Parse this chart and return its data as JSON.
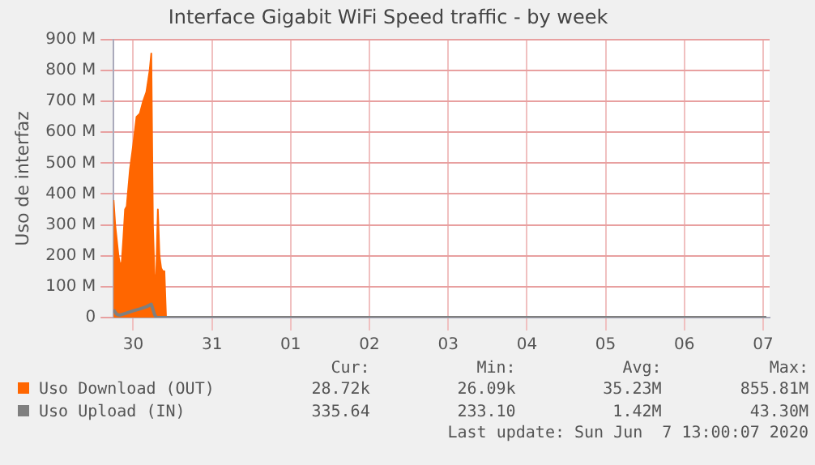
{
  "chart_data": {
    "type": "area",
    "title": "Interface Gigabit WiFi Speed traffic - by week",
    "ylabel": "Uso de interfaz",
    "xlim": [
      "2020-05-30T06:00",
      "2020-06-07T14:00"
    ],
    "xticks": [
      {
        "value": "2020-05-30T12:00",
        "label": "30"
      },
      {
        "value": "2020-05-31T12:00",
        "label": "31"
      },
      {
        "value": "2020-06-01T12:00",
        "label": "01"
      },
      {
        "value": "2020-06-02T12:00",
        "label": "02"
      },
      {
        "value": "2020-06-03T12:00",
        "label": "03"
      },
      {
        "value": "2020-06-04T12:00",
        "label": "04"
      },
      {
        "value": "2020-06-05T12:00",
        "label": "05"
      },
      {
        "value": "2020-06-06T12:00",
        "label": "06"
      },
      {
        "value": "2020-06-07T12:00",
        "label": "07"
      }
    ],
    "ylim": [
      0,
      900
    ],
    "yticks": [
      0,
      {
        "value": 100,
        "label": "100 M"
      },
      {
        "value": 200,
        "label": "200 M"
      },
      {
        "value": 300,
        "label": "300 M"
      },
      {
        "value": 400,
        "label": "400 M"
      },
      {
        "value": 500,
        "label": "500 M"
      },
      {
        "value": 600,
        "label": "600 M"
      },
      {
        "value": 700,
        "label": "700 M"
      },
      {
        "value": 800,
        "label": "800 M"
      },
      {
        "value": 900,
        "label": "900 M"
      }
    ],
    "grid": true,
    "legend": "bottom",
    "series": [
      {
        "name": "Uso Download (OUT)",
        "type": "area",
        "color": "#ff6600",
        "x": [
          "2020-05-30T06:00",
          "2020-05-30T06:30",
          "2020-05-30T07:30",
          "2020-05-30T08:00",
          "2020-05-30T08:30",
          "2020-05-30T09:00",
          "2020-05-30T09:30",
          "2020-05-30T10:00",
          "2020-05-30T11:00",
          "2020-05-30T12:00",
          "2020-05-30T13:00",
          "2020-05-30T14:00",
          "2020-05-30T15:00",
          "2020-05-30T16:00",
          "2020-05-30T17:00",
          "2020-05-30T17:30",
          "2020-05-30T18:00",
          "2020-05-30T18:30",
          "2020-05-30T19:00",
          "2020-05-30T19:30",
          "2020-05-30T20:00",
          "2020-05-30T20:30",
          "2020-05-30T21:00",
          "2020-05-30T21:30",
          "2020-05-30T22:00",
          "2020-06-07T13:00"
        ],
        "values": [
          380,
          300,
          200,
          170,
          180,
          260,
          350,
          360,
          480,
          560,
          650,
          660,
          700,
          730,
          800,
          855,
          300,
          130,
          140,
          350,
          200,
          160,
          150,
          150,
          0,
          0
        ]
      },
      {
        "name": "Uso Upload (IN)",
        "type": "line",
        "color": "#7f7f7f",
        "x": [
          "2020-05-30T06:00",
          "2020-05-30T07:00",
          "2020-05-30T08:00",
          "2020-05-30T10:00",
          "2020-05-30T12:00",
          "2020-05-30T14:00",
          "2020-05-30T16:00",
          "2020-05-30T17:30",
          "2020-05-30T18:30",
          "2020-05-30T19:00",
          "2020-06-07T13:00"
        ],
        "values": [
          25,
          10,
          8,
          15,
          22,
          28,
          35,
          43,
          10,
          0,
          0
        ]
      }
    ],
    "annotations": [
      "Cur:",
      "Min:",
      "Avg:",
      "Max:",
      "28.72k",
      "26.09k",
      "35.23M",
      "855.81M",
      "335.64",
      "233.10",
      "1.42M",
      "43.30M",
      "Last update: Sun Jun  7 13:00:07 2020"
    ]
  }
}
